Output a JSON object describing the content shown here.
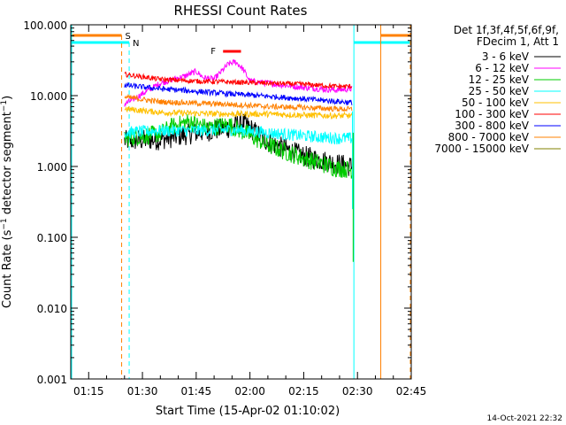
{
  "chart_data": {
    "type": "line",
    "title": "RHESSI Count Rates",
    "xlabel": "Start Time (15-Apr-02 01:10:02)",
    "ylabel": "Count Rate (s⁻¹ detector segment⁻¹)",
    "ylabel_parts": [
      "Count Rate (s",
      "−1",
      " detector segment",
      "−1",
      ")"
    ],
    "yscale": "log",
    "ylim": [
      0.001,
      100
    ],
    "xlim_minutes": [
      0,
      95
    ],
    "xticks": [
      {
        "t": 5,
        "label": "01:15"
      },
      {
        "t": 20,
        "label": "01:30"
      },
      {
        "t": 35,
        "label": "01:45"
      },
      {
        "t": 50,
        "label": "02:00"
      },
      {
        "t": 65,
        "label": "02:15"
      },
      {
        "t": 80,
        "label": "02:30"
      },
      {
        "t": 95,
        "label": "02:45"
      }
    ],
    "yticks": [
      {
        "v": 100,
        "label": "100.000"
      },
      {
        "v": 10,
        "label": "10.000"
      },
      {
        "v": 1,
        "label": "1.000"
      },
      {
        "v": 0.1,
        "label": "0.100"
      },
      {
        "v": 0.01,
        "label": "0.010"
      },
      {
        "v": 0.001,
        "label": "0.001"
      }
    ],
    "legend_header": [
      "Det 1f,3f,4f,5f,6f,9f,",
      "FDecim 1, Att 1"
    ],
    "series": [
      {
        "name": "3 - 6 keV",
        "color": "#000000",
        "t": [
          15,
          25,
          35,
          44,
          48,
          55,
          65,
          74,
          78.5
        ],
        "values": [
          2.3,
          2.4,
          3.0,
          3.5,
          4.2,
          2.2,
          1.4,
          1.1,
          1.0
        ]
      },
      {
        "name": "6 - 12 keV",
        "color": "#ff00ff",
        "t": [
          15,
          25,
          32,
          35,
          37,
          40,
          44,
          46,
          48,
          50,
          55,
          65,
          74,
          78.5
        ],
        "values": [
          7.5,
          15,
          19,
          22,
          18,
          17,
          28,
          30,
          24,
          16,
          15,
          13,
          12,
          12.5
        ]
      },
      {
        "name": "12 - 25 keV",
        "color": "#00cc00",
        "t": [
          15,
          25,
          28,
          33,
          38,
          44,
          48,
          55,
          65,
          74,
          78.5
        ],
        "values": [
          2.5,
          2.9,
          3.6,
          4.3,
          3.5,
          3.9,
          3.1,
          2.0,
          1.3,
          0.95,
          0.9
        ]
      },
      {
        "name": "25 - 50 keV",
        "color": "#00ffff",
        "t": [
          15,
          25,
          35,
          45,
          55,
          65,
          74,
          78.5
        ],
        "values": [
          3.0,
          3.2,
          3.2,
          3.3,
          3.0,
          2.7,
          2.5,
          2.5
        ]
      },
      {
        "name": "50 - 100 keV",
        "color": "#ffc000",
        "t": [
          15,
          25,
          35,
          45,
          55,
          65,
          74,
          78.5
        ],
        "values": [
          6.5,
          5.8,
          5.6,
          5.5,
          5.5,
          5.3,
          5.2,
          5.2
        ]
      },
      {
        "name": "100 - 300 keV",
        "color": "#ff0000",
        "t": [
          15,
          25,
          35,
          45,
          55,
          65,
          74,
          78.5
        ],
        "values": [
          20,
          17,
          16,
          15.5,
          15,
          14.5,
          13.5,
          13.5
        ]
      },
      {
        "name": "300 - 800 keV",
        "color": "#0000ff",
        "t": [
          15,
          25,
          35,
          45,
          55,
          65,
          74,
          78.5
        ],
        "values": [
          14,
          12.5,
          11.5,
          10.5,
          9.8,
          9.0,
          8.3,
          8.0
        ]
      },
      {
        "name": "800 - 7000 keV",
        "color": "#ff8000",
        "t": [
          15,
          25,
          35,
          45,
          55,
          65,
          74,
          78.5
        ],
        "values": [
          9.5,
          8.2,
          7.8,
          7.5,
          7.0,
          6.8,
          6.5,
          6.4
        ]
      },
      {
        "name": "7000 - 15000 keV",
        "color": "#808000",
        "t": [],
        "values": []
      }
    ],
    "annotations": [
      {
        "label": "S",
        "color": "#ff8000",
        "t": 14.2,
        "description": "SAA start (dashed)"
      },
      {
        "label": "N",
        "color": "#00ffff",
        "t": 16.3,
        "description": "night start (dashed)"
      },
      {
        "label": "F",
        "color": "#ff0000",
        "t_start": 42.5,
        "t_end": 47.5,
        "description": "flare flag"
      }
    ],
    "footer_date": "14-Oct-2021 22:32"
  },
  "colors": {
    "saa": "#ff8000",
    "night": "#00ffff",
    "flare": "#ff0000",
    "axis": "#000000"
  }
}
